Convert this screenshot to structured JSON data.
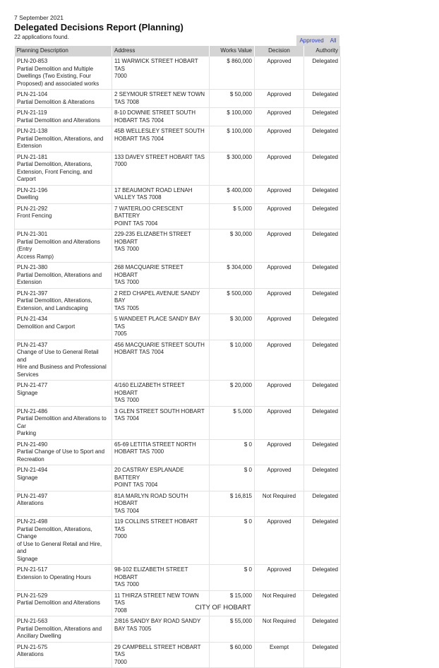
{
  "report": {
    "date": "7 September 2021",
    "title": "Delegated Decisions Report (Planning)",
    "count_text": "22 applications found.",
    "filters": [
      "Approved",
      "All"
    ]
  },
  "table": {
    "headers": [
      "Planning Description",
      "Address",
      "Works Value",
      "Decision",
      "Authority"
    ],
    "rows": [
      {
        "id": "PLN-20-853",
        "desc": "Partial Demolition and Multiple\nDwellings (Two Existing, Four\nProposed) and associated works",
        "address": "11 WARWICK STREET HOBART TAS\n7000",
        "value": "$ 860,000",
        "decision": "Approved",
        "authority": "Delegated"
      },
      {
        "id": "PLN-21-104",
        "desc": "Partial Demolition & Alterations",
        "address": "2 SEYMOUR STREET NEW TOWN\nTAS 7008",
        "value": "$ 50,000",
        "decision": "Approved",
        "authority": "Delegated"
      },
      {
        "id": "PLN-21-119",
        "desc": "Partial Demolition and Alterations",
        "address": "8-10 DOWNIE STREET SOUTH\nHOBART TAS 7004",
        "value": "$ 100,000",
        "decision": "Approved",
        "authority": "Delegated"
      },
      {
        "id": "PLN-21-138",
        "desc": "Partial Demolition, Alterations, and\nExtension",
        "address": "45B WELLESLEY STREET SOUTH\nHOBART TAS 7004",
        "value": "$ 100,000",
        "decision": "Approved",
        "authority": "Delegated"
      },
      {
        "id": "PLN-21-181",
        "desc": "Partial Demolition, Alterations,\nExtension, Front Fencing, and Carport",
        "address": "133 DAVEY STREET HOBART TAS\n7000",
        "value": "$ 300,000",
        "decision": "Approved",
        "authority": "Delegated"
      },
      {
        "id": "PLN-21-196",
        "desc": "Dwelling",
        "address": "17 BEAUMONT ROAD LENAH\nVALLEY TAS 7008",
        "value": "$ 400,000",
        "decision": "Approved",
        "authority": "Delegated"
      },
      {
        "id": "PLN-21-292",
        "desc": "Front Fencing",
        "address": "7 WATERLOO CRESCENT BATTERY\nPOINT TAS 7004",
        "value": "$ 5,000",
        "decision": "Approved",
        "authority": "Delegated"
      },
      {
        "id": "PLN-21-301",
        "desc": "Partial Demolition and Alterations (Entry\nAccess Ramp)",
        "address": "229-235 ELIZABETH STREET HOBART\nTAS 7000",
        "value": "$ 30,000",
        "decision": "Approved",
        "authority": "Delegated"
      },
      {
        "id": "PLN-21-380",
        "desc": "Partial Demolition, Alterations and\nExtension",
        "address": "268 MACQUARIE STREET HOBART\nTAS 7000",
        "value": "$ 304,000",
        "decision": "Approved",
        "authority": "Delegated"
      },
      {
        "id": "PLN-21-397",
        "desc": "Partial Demolition, Alterations,\nExtension, and Landscaping",
        "address": "2 RED CHAPEL AVENUE SANDY BAY\nTAS 7005",
        "value": "$ 500,000",
        "decision": "Approved",
        "authority": "Delegated"
      },
      {
        "id": "PLN-21-434",
        "desc": "Demolition and Carport",
        "address": "5 WANDEET PLACE SANDY BAY TAS\n7005",
        "value": "$ 30,000",
        "decision": "Approved",
        "authority": "Delegated"
      },
      {
        "id": "PLN-21-437",
        "desc": "Change of Use to General Retail and\nHire and Business and Professional\nServices",
        "address": "456 MACQUARIE STREET SOUTH\nHOBART TAS 7004",
        "value": "$ 10,000",
        "decision": "Approved",
        "authority": "Delegated"
      },
      {
        "id": "PLN-21-477",
        "desc": "Signage",
        "address": "4/160 ELIZABETH STREET HOBART\nTAS 7000",
        "value": "$ 20,000",
        "decision": "Approved",
        "authority": "Delegated"
      },
      {
        "id": "PLN-21-486",
        "desc": "Partial Demolition and Alterations to Car\nParking",
        "address": "3 GLEN STREET SOUTH HOBART\nTAS 7004",
        "value": "$ 5,000",
        "decision": "Approved",
        "authority": "Delegated"
      },
      {
        "id": "PLN-21-490",
        "desc": "Partial Change of Use to Sport and\nRecreation",
        "address": "65-69 LETITIA STREET NORTH\nHOBART TAS 7000",
        "value": "$ 0",
        "decision": "Approved",
        "authority": "Delegated"
      },
      {
        "id": "PLN-21-494",
        "desc": "Signage",
        "address": "20 CASTRAY ESPLANADE BATTERY\nPOINT TAS 7004",
        "value": "$ 0",
        "decision": "Approved",
        "authority": "Delegated"
      },
      {
        "id": "PLN-21-497",
        "desc": "Alterations",
        "address": "81A MARLYN ROAD SOUTH HOBART\nTAS 7004",
        "value": "$ 16,815",
        "decision": "Not Required",
        "authority": "Delegated"
      },
      {
        "id": "PLN-21-498",
        "desc": "Partial Demolition, Alterations, Change\nof Use to General Retail and Hire, and\nSignage",
        "address": "119 COLLINS STREET HOBART TAS\n7000",
        "value": "$ 0",
        "decision": "Approved",
        "authority": "Delegated"
      },
      {
        "id": "PLN-21-517",
        "desc": "Extension to Operating Hours",
        "address": "98-102 ELIZABETH STREET HOBART\nTAS 7000",
        "value": "$ 0",
        "decision": "Approved",
        "authority": "Delegated"
      },
      {
        "id": "PLN-21-529",
        "desc": "Partial Demolition and Alterations",
        "address": "11 THIRZA STREET NEW TOWN TAS\n7008",
        "value": "$ 15,000",
        "decision": "Not Required",
        "authority": "Delegated"
      },
      {
        "id": "PLN-21-563",
        "desc": "Partial Demolition, Alterations and\nAncillary Dwelling",
        "address": "2/816 SANDY BAY ROAD SANDY\nBAY TAS 7005",
        "value": "$ 55,000",
        "decision": "Not Required",
        "authority": "Delegated"
      },
      {
        "id": "PLN-21-575",
        "desc": "Alterations",
        "address": "29 CAMPBELL STREET HOBART TAS\n7000",
        "value": "$ 60,000",
        "decision": "Exempt",
        "authority": "Delegated"
      }
    ]
  },
  "footer": {
    "text": "CITY OF HOBART"
  },
  "colors": {
    "header_bg": "#d4d4d4",
    "link": "#2a3fd0"
  }
}
